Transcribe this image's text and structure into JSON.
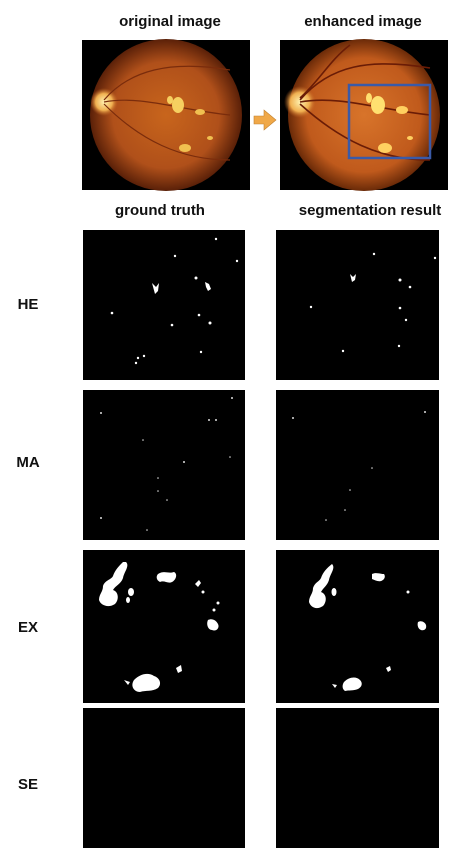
{
  "top_titles": [
    "original image",
    "enhanced image"
  ],
  "mask_titles": [
    "ground truth",
    "segmentation result"
  ],
  "row_labels": [
    "HE",
    "MA",
    "EX",
    "SE"
  ]
}
